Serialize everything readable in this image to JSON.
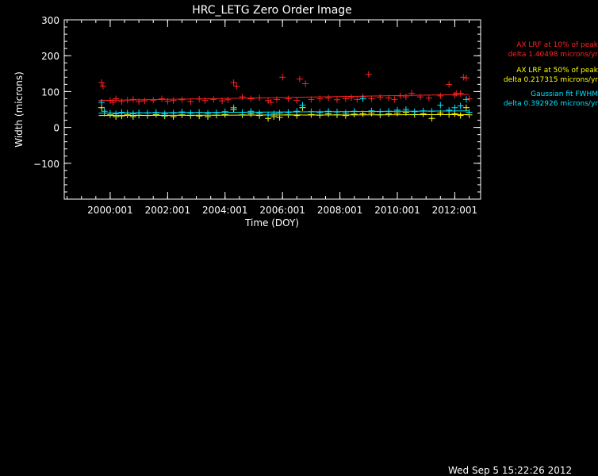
{
  "colors": {
    "background": "#000000",
    "axes": "#ffffff",
    "red": "#ff2222",
    "yellow": "#ffff00",
    "cyan": "#00e5ff"
  },
  "timestamp": "Wed Sep  5 15:22:26 2012",
  "legend": [
    {
      "line1": "AX LRF at 10% of peak",
      "line2": "delta 1.40498 microns/yr",
      "color": "#ff2222"
    },
    {
      "line1": "AX LRF at 50% of peak",
      "line2": "delta 0.217315 microns/yr",
      "color": "#ffff00"
    },
    {
      "line1": "Gaussian fit FWHM",
      "line2": "delta 0.392926 microns/yr",
      "color": "#00e5ff"
    }
  ],
  "chart_data": {
    "type": "scatter",
    "title": "HRC_LETG Zero Order Image",
    "xlabel": "Time (DOY)",
    "ylabel": "Width (microns)",
    "xlim": [
      1998.4,
      2012.9
    ],
    "ylim": [
      -200,
      300
    ],
    "x_ticks": [
      2000,
      2002,
      2004,
      2006,
      2008,
      2010,
      2012
    ],
    "x_tick_labels": [
      "2000:001",
      "2002:001",
      "2004:001",
      "2006:001",
      "2008:001",
      "2010:001",
      "2012:001"
    ],
    "y_ticks": [
      300,
      200,
      100,
      0,
      -100
    ],
    "y_tick_labels": [
      "300",
      "200",
      "100",
      "0",
      "−100"
    ],
    "series": [
      {
        "color": "#ff2222",
        "x": [
          1999.7,
          1999.75,
          2000.0,
          2000.1,
          2000.2,
          2000.4,
          2000.6,
          2000.8,
          2001.0,
          2001.2,
          2001.5,
          2001.8,
          2002.0,
          2002.2,
          2002.5,
          2002.8,
          2003.1,
          2003.3,
          2003.6,
          2003.9,
          2004.1,
          2004.3,
          2004.4,
          2004.6,
          2004.9,
          2005.2,
          2005.5,
          2005.6,
          2005.8,
          2006.0,
          2006.2,
          2006.5,
          2006.6,
          2006.8,
          2007.0,
          2007.3,
          2007.6,
          2007.9,
          2008.2,
          2008.4,
          2008.6,
          2008.8,
          2009.0,
          2009.1,
          2009.4,
          2009.7,
          2009.9,
          2010.1,
          2010.3,
          2010.5,
          2010.8,
          2011.1,
          2011.5,
          2011.8,
          2012.0,
          2012.05,
          2012.2,
          2012.3,
          2012.4,
          2012.5
        ],
        "y": [
          125,
          115,
          75,
          70,
          80,
          72,
          76,
          78,
          72,
          74,
          76,
          80,
          73,
          75,
          77,
          72,
          79,
          75,
          78,
          74,
          77,
          125,
          115,
          85,
          80,
          82,
          75,
          70,
          78,
          140,
          80,
          75,
          135,
          122,
          78,
          80,
          82,
          77,
          80,
          83,
          78,
          85,
          148,
          80,
          84,
          82,
          78,
          88,
          85,
          95,
          85,
          82,
          88,
          120,
          90,
          95,
          95,
          140,
          138,
          80
        ],
        "fit": [
          [
            1999.6,
            75
          ],
          [
            2012.5,
            92
          ]
        ]
      },
      {
        "color": "#ffff00",
        "x": [
          1999.7,
          1999.8,
          2000.0,
          2000.2,
          2000.4,
          2000.6,
          2000.8,
          2001.0,
          2001.3,
          2001.6,
          2001.9,
          2002.2,
          2002.5,
          2002.8,
          2003.1,
          2003.4,
          2003.7,
          2004.0,
          2004.3,
          2004.6,
          2004.9,
          2005.2,
          2005.5,
          2005.7,
          2005.9,
          2006.2,
          2006.5,
          2006.7,
          2007.0,
          2007.3,
          2007.6,
          2007.9,
          2008.2,
          2008.5,
          2008.8,
          2009.1,
          2009.4,
          2009.7,
          2010.0,
          2010.3,
          2010.6,
          2010.9,
          2011.2,
          2011.5,
          2011.8,
          2012.0,
          2012.2,
          2012.4,
          2012.5
        ],
        "y": [
          55,
          40,
          35,
          30,
          32,
          35,
          30,
          34,
          33,
          36,
          32,
          30,
          35,
          33,
          32,
          30,
          34,
          36,
          50,
          35,
          38,
          33,
          25,
          30,
          28,
          35,
          33,
          55,
          36,
          34,
          38,
          35,
          33,
          37,
          38,
          40,
          35,
          38,
          40,
          42,
          36,
          38,
          25,
          40,
          36,
          38,
          33,
          55,
          35
        ],
        "fit": [
          [
            1999.6,
            33
          ],
          [
            2012.5,
            36
          ]
        ]
      },
      {
        "color": "#00e5ff",
        "x": [
          1999.7,
          1999.8,
          2000.0,
          2000.2,
          2000.4,
          2000.6,
          2000.8,
          2001.0,
          2001.3,
          2001.6,
          2001.9,
          2002.2,
          2002.5,
          2002.8,
          2003.1,
          2003.4,
          2003.7,
          2004.0,
          2004.3,
          2004.6,
          2004.9,
          2005.2,
          2005.5,
          2005.7,
          2005.9,
          2006.2,
          2006.5,
          2006.7,
          2007.0,
          2007.3,
          2007.6,
          2007.9,
          2008.2,
          2008.5,
          2008.8,
          2009.1,
          2009.4,
          2009.7,
          2010.0,
          2010.3,
          2010.6,
          2010.9,
          2011.2,
          2011.5,
          2011.8,
          2012.0,
          2012.2,
          2012.4,
          2012.5
        ],
        "y": [
          70,
          45,
          40,
          38,
          42,
          40,
          38,
          41,
          40,
          42,
          38,
          40,
          43,
          40,
          42,
          39,
          41,
          44,
          55,
          42,
          45,
          40,
          35,
          38,
          40,
          42,
          45,
          62,
          44,
          42,
          45,
          43,
          40,
          45,
          80,
          46,
          44,
          45,
          48,
          50,
          44,
          46,
          45,
          62,
          48,
          55,
          60,
          78,
          42
        ],
        "fit": [
          [
            1999.6,
            40
          ],
          [
            2012.5,
            46
          ]
        ]
      }
    ]
  }
}
